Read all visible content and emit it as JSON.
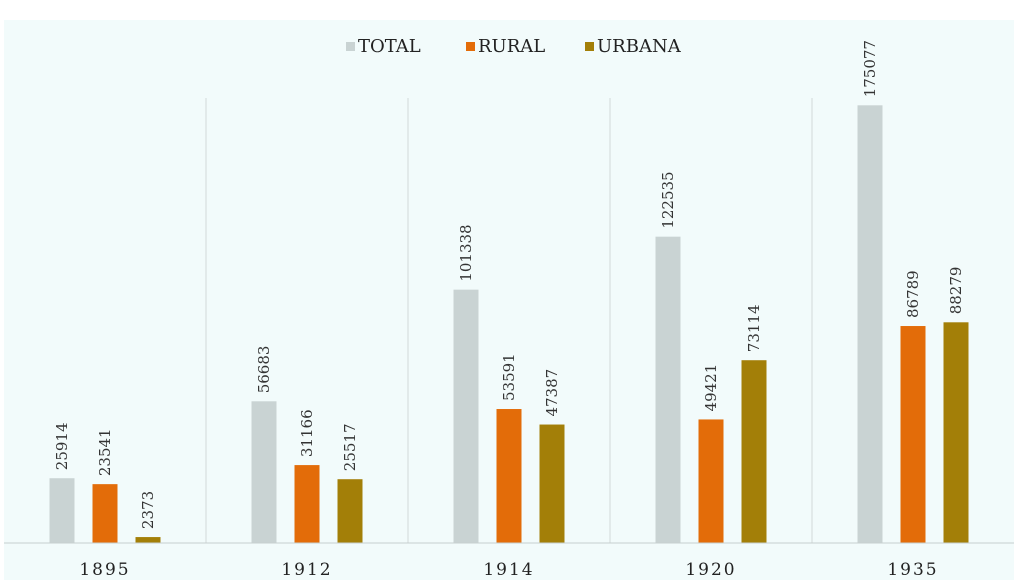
{
  "chart_data": {
    "type": "bar",
    "title": "",
    "xlabel": "",
    "ylabel": "",
    "categories": [
      "1895",
      "1912",
      "1914",
      "1920",
      "1935"
    ],
    "series": [
      {
        "name": "TOTAL",
        "color": "#c9d3d3",
        "values": [
          25914,
          56683,
          101338,
          122535,
          175077
        ]
      },
      {
        "name": "RURAL",
        "color": "#e36c09",
        "values": [
          23541,
          31166,
          53591,
          49421,
          86789
        ]
      },
      {
        "name": "URBANA",
        "color": "#a37f08",
        "values": [
          2373,
          25517,
          47387,
          73114,
          88279
        ]
      }
    ],
    "ylim": [
      0,
      200000
    ],
    "legend_position": "top-center",
    "grid": false,
    "category_separators": true,
    "data_labels": "vertical-above-bars",
    "background_color": "#f2fbfb"
  }
}
